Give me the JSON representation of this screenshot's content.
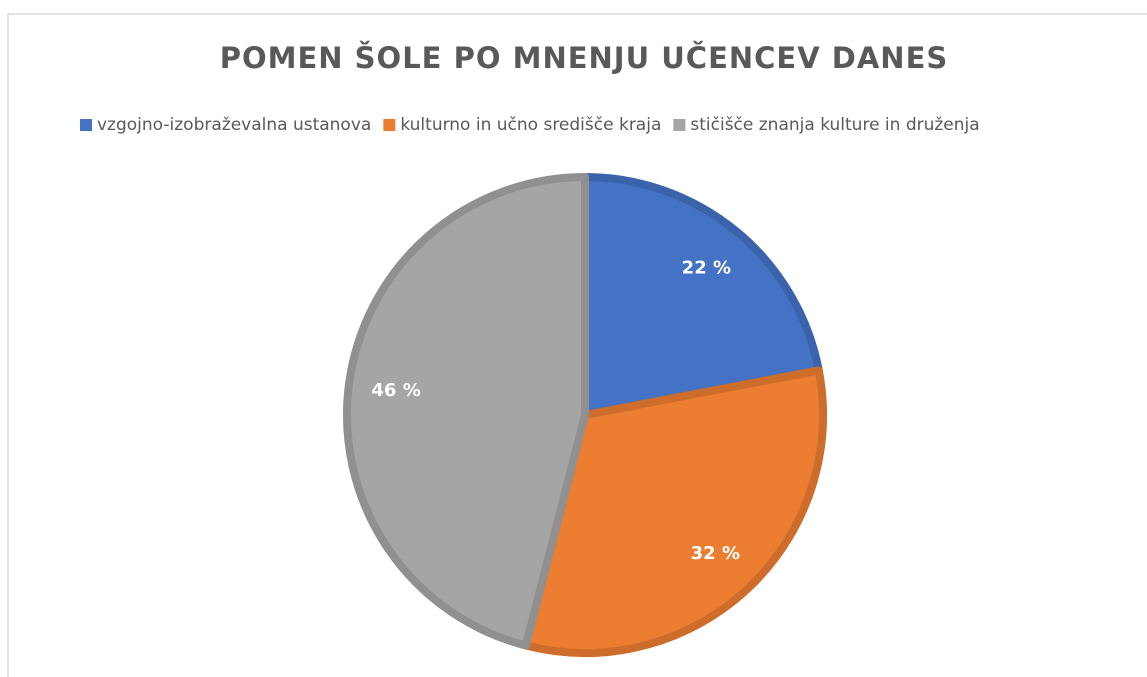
{
  "chart_data": {
    "type": "pie",
    "title": "POMEN ŠOLE PO MNENJU UČENCEV DANES",
    "categories": [
      "vzgojno-izobraževalna ustanova",
      "kulturno in učno središče kraja",
      "stičišče znanja kulture in druženja"
    ],
    "values": [
      22,
      32,
      46
    ],
    "value_labels": [
      "22 %",
      "32 %",
      "46 %"
    ],
    "colors": [
      "#4472c4",
      "#ed7d31",
      "#a5a5a5"
    ],
    "legend": "top"
  }
}
